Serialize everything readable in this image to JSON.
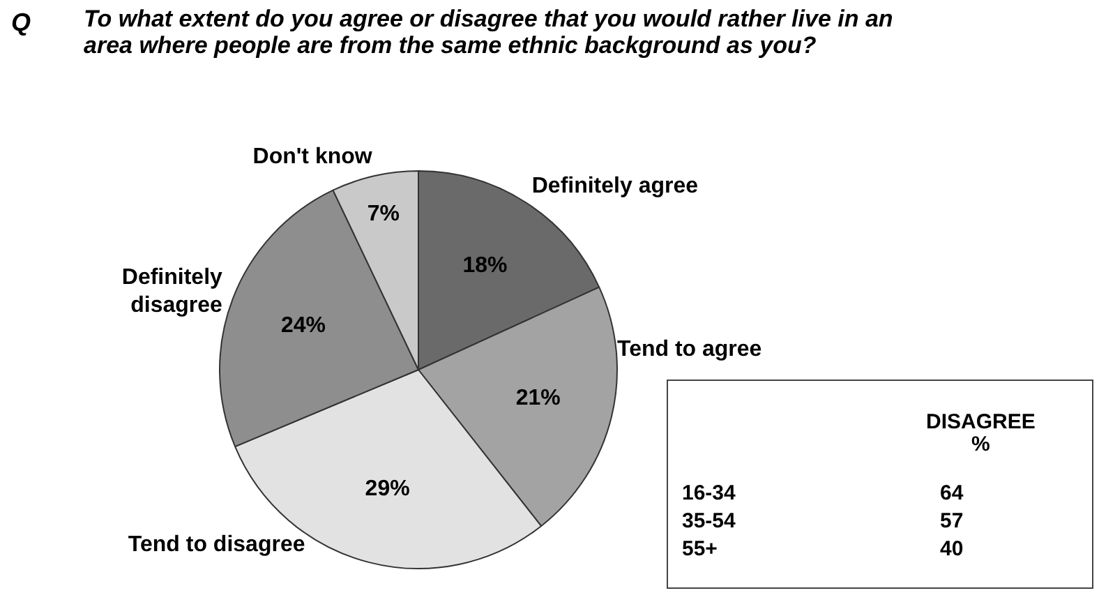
{
  "chart_data": [
    {
      "type": "pie",
      "title": "To what extent do you agree or disagree that you would rather live in an area where people are from the same ethnic background as you?",
      "annotations": [
        "Q"
      ],
      "categories": [
        "Definitely agree",
        "Tend to agree",
        "Tend to disagree",
        "Definitely disagree",
        "Don't know"
      ],
      "values": [
        18,
        21,
        29,
        24,
        7
      ],
      "colors": [
        "#6a6a6a",
        "#a3a3a3",
        "#e2e2e2",
        "#8e8e8e",
        "#c9c9c9"
      ],
      "value_labels": [
        "18%",
        "21%",
        "29%",
        "24%",
        "7%"
      ],
      "legend": false
    },
    {
      "type": "other",
      "title": "DISAGREE",
      "subtitle": "%",
      "categories": [
        "16-34",
        "35-54",
        "55+"
      ],
      "values": [
        64,
        57,
        40
      ],
      "data_labels": true
    }
  ]
}
